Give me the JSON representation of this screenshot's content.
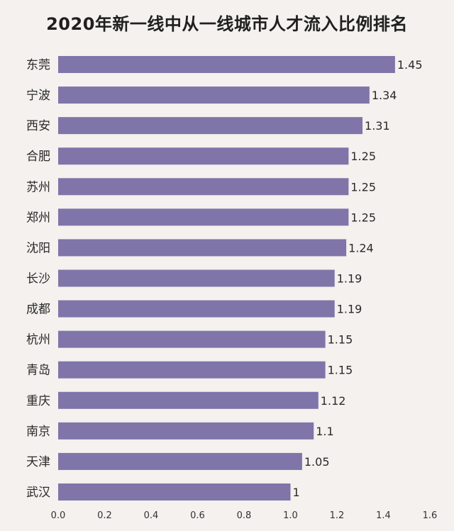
{
  "chart_data": {
    "type": "bar",
    "orientation": "horizontal",
    "title": "2020年新一线中从一线城市人才流入比例排名",
    "categories": [
      "东莞",
      "宁波",
      "西安",
      "合肥",
      "苏州",
      "郑州",
      "沈阳",
      "长沙",
      "成都",
      "杭州",
      "青岛",
      "重庆",
      "南京",
      "天津",
      "武汉"
    ],
    "values": [
      1.45,
      1.34,
      1.31,
      1.25,
      1.25,
      1.25,
      1.24,
      1.19,
      1.19,
      1.15,
      1.15,
      1.12,
      1.1,
      1.05,
      1
    ],
    "value_labels": [
      "1.45",
      "1.34",
      "1.31",
      "1.25",
      "1.25",
      "1.25",
      "1.24",
      "1.19",
      "1.19",
      "1.15",
      "1.15",
      "1.12",
      "1.1",
      "1.05",
      "1"
    ],
    "xlim": [
      0,
      1.6
    ],
    "xticks": [
      "0.0",
      "0.2",
      "0.4",
      "0.6",
      "0.8",
      "1.0",
      "1.2",
      "1.4",
      "1.6"
    ],
    "bar_color": "#7f75a9",
    "background": "#f4f1ee",
    "grid": false
  }
}
